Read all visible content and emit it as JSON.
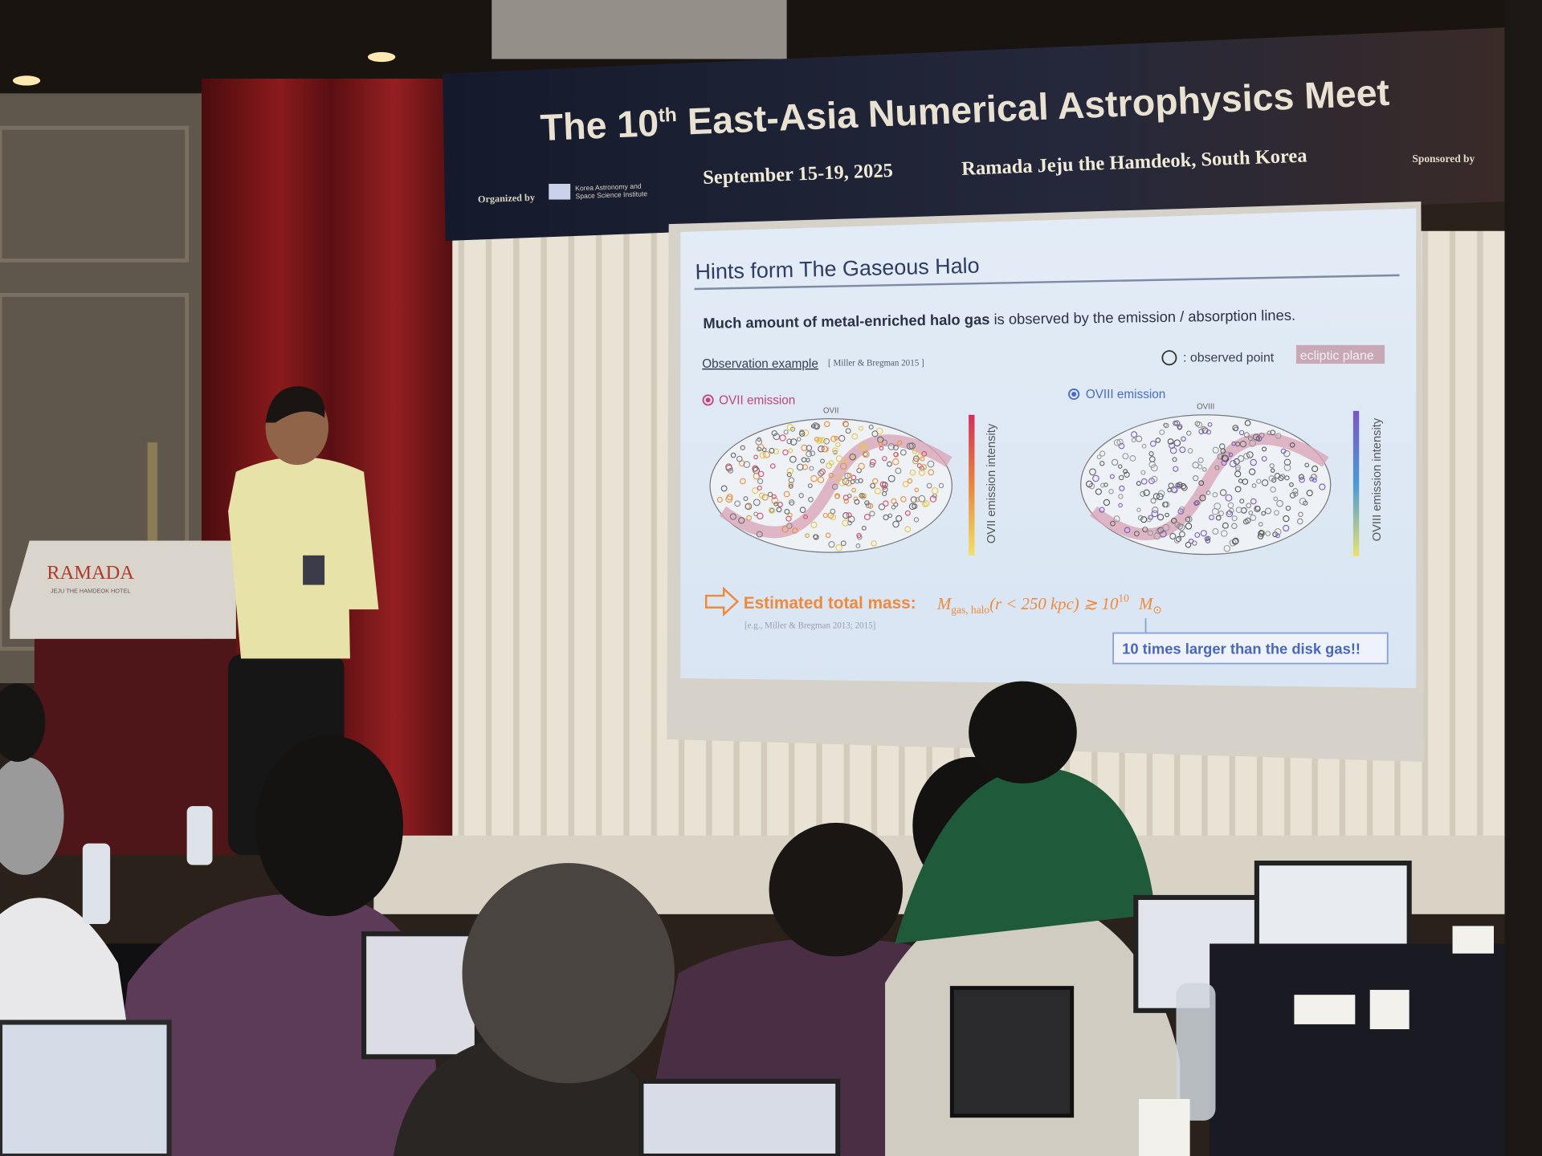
{
  "banner": {
    "title_pre": "The 10",
    "title_sup": "th",
    "title_post": " East-Asia Numerical Astrophysics Meet",
    "dates": "September 15-19, 2025",
    "venue": "Ramada Jeju the Hamdeok, South Korea",
    "organized_by": "Organized by",
    "organizer": [
      "Korea Astronomy and",
      "Space Science Institute"
    ],
    "sponsored_by": "Sponsored by"
  },
  "podium": {
    "brand": "RAMADA",
    "subtitle": "JEJU THE HAMDEOK HOTEL"
  },
  "slide": {
    "title": "Hints form The Gaseous Halo",
    "lead_bold": "Much amount of metal-enriched halo gas",
    "lead_rest": " is observed by the emission / absorption lines.",
    "example": "Observation example",
    "example_ref": "[ Miller & Bregman 2015 ]",
    "legend_point": ": observed point",
    "legend_plane": "ecliptic plane",
    "maps": [
      {
        "label": "OVII emission",
        "map_title": "OVII",
        "colorbar": "OVII emission intensity"
      },
      {
        "label": "OVIII emission",
        "map_title": "OVIII",
        "colorbar": "OVIII emission intensity"
      }
    ],
    "estimate": "Estimated total mass:",
    "formula": {
      "mass_symbol": "M",
      "mass_subscript": "gas, halo",
      "condition": "(r < 250 kpc) ≳ 10",
      "exponent": "10",
      "solar_symbol": "M",
      "solar_subscript": "⊙"
    },
    "estimate_ref": "[e.g., Miller & Bregman 2013; 2015]",
    "callout": "10 times larger than the disk gas!!"
  }
}
